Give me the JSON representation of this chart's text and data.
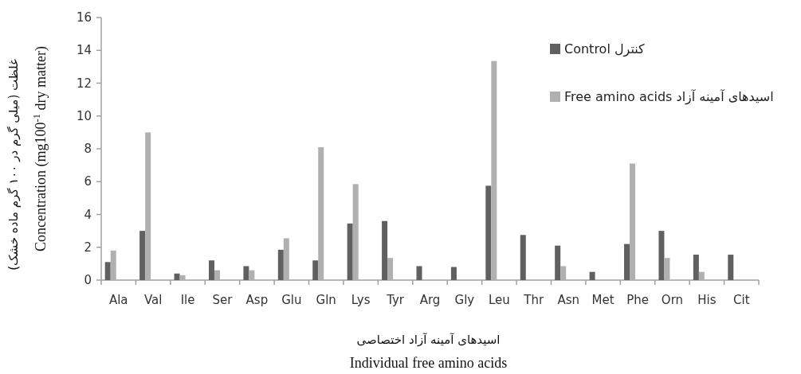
{
  "chart_data": {
    "type": "bar",
    "xlabel": "Individual free amino acids",
    "ylabel": "Concentration (mg100$^{-1}$ dry matter)",
    "annotations": [
      "غلظت (میلی گرم در ۱۰۰ گرم ماده خشک)",
      "اسیدهای آمینه آزاد اختصاصی"
    ],
    "categories": [
      "Ala",
      "Val",
      "Ile",
      "Ser",
      "Asp",
      "Glu",
      "Gln",
      "Lys",
      "Tyr",
      "Arg",
      "Gly",
      "Leu",
      "Thr",
      "Asn",
      "Met",
      "Phe",
      "Orn",
      "His",
      "Cit"
    ],
    "series": [
      {
        "name": "کنترل Control",
        "color": "#606060",
        "values": [
          1.1,
          3.0,
          0.4,
          1.2,
          0.85,
          1.85,
          1.2,
          3.45,
          3.6,
          0.85,
          0.8,
          5.75,
          2.75,
          2.1,
          0.5,
          2.2,
          3.0,
          1.55,
          1.55
        ]
      },
      {
        "name": "اسیدهای آمینه آزاد Free amino acids",
        "color": "#b0b0b0",
        "values": [
          1.8,
          9.0,
          0.3,
          0.6,
          0.6,
          2.55,
          8.1,
          5.85,
          1.35,
          0,
          0,
          13.35,
          0,
          0.85,
          0,
          7.1,
          1.35,
          0.5,
          0
        ]
      }
    ],
    "ylim": [
      0,
      16
    ],
    "yticks": [
      0,
      2,
      4,
      6,
      8,
      10,
      12,
      14,
      16
    ],
    "legend": "top right"
  }
}
